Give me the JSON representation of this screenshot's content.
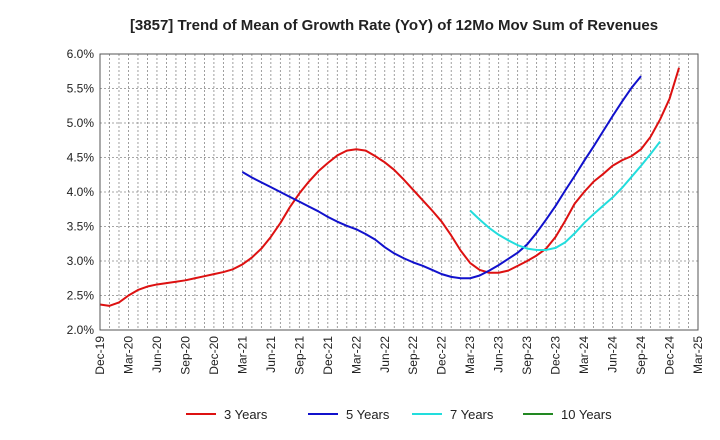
{
  "chart_data": {
    "type": "line",
    "title": "[3857]  Trend of Mean of Growth Rate (YoY) of 12Mo Mov Sum of Revenues",
    "xlabel": "",
    "ylabel": "",
    "ylim": [
      2.0,
      6.0
    ],
    "y_ticks": [
      2.0,
      2.5,
      3.0,
      3.5,
      4.0,
      4.5,
      5.0,
      5.5,
      6.0
    ],
    "y_tick_labels": [
      "2.0%",
      "2.5%",
      "3.0%",
      "3.5%",
      "4.0%",
      "4.5%",
      "5.0%",
      "5.5%",
      "6.0%"
    ],
    "x_tick_labels": [
      "Dec-19",
      "Mar-20",
      "Jun-20",
      "Sep-20",
      "Dec-20",
      "Mar-21",
      "Jun-21",
      "Sep-21",
      "Dec-21",
      "Mar-22",
      "Jun-22",
      "Sep-22",
      "Dec-22",
      "Mar-23",
      "Jun-23",
      "Sep-23",
      "Dec-23",
      "Mar-24",
      "Jun-24",
      "Sep-24",
      "Dec-24",
      "Mar-25"
    ],
    "x_months_total": 63,
    "grid": true,
    "legend_position": "bottom",
    "series": [
      {
        "name": "3 Years",
        "color": "#dd1111",
        "start_month": 0,
        "values": [
          2.37,
          2.35,
          2.4,
          2.5,
          2.58,
          2.63,
          2.66,
          2.68,
          2.7,
          2.72,
          2.75,
          2.78,
          2.81,
          2.84,
          2.88,
          2.95,
          3.05,
          3.18,
          3.35,
          3.55,
          3.78,
          3.98,
          4.15,
          4.3,
          4.42,
          4.53,
          4.6,
          4.62,
          4.6,
          4.52,
          4.43,
          4.32,
          4.18,
          4.03,
          3.88,
          3.73,
          3.57,
          3.37,
          3.15,
          2.97,
          2.87,
          2.83,
          2.83,
          2.86,
          2.93,
          3.0,
          3.08,
          3.18,
          3.35,
          3.58,
          3.83,
          4.0,
          4.15,
          4.26,
          4.38,
          4.46,
          4.52,
          4.62,
          4.8,
          5.05,
          5.35,
          5.8
        ]
      },
      {
        "name": "5 Years",
        "color": "#1111cc",
        "start_month": 15,
        "values": [
          4.29,
          4.21,
          4.14,
          4.07,
          4.0,
          3.93,
          3.86,
          3.79,
          3.72,
          3.64,
          3.57,
          3.51,
          3.46,
          3.39,
          3.31,
          3.2,
          3.11,
          3.04,
          2.98,
          2.93,
          2.87,
          2.81,
          2.77,
          2.75,
          2.75,
          2.79,
          2.86,
          2.94,
          3.03,
          3.12,
          3.24,
          3.41,
          3.6,
          3.8,
          4.02,
          4.23,
          4.45,
          4.66,
          4.88,
          5.1,
          5.31,
          5.51,
          5.68
        ]
      },
      {
        "name": "7 Years",
        "color": "#22dddd",
        "start_month": 39,
        "values": [
          3.73,
          3.6,
          3.48,
          3.38,
          3.3,
          3.23,
          3.18,
          3.16,
          3.16,
          3.19,
          3.27,
          3.4,
          3.55,
          3.68,
          3.8,
          3.92,
          4.06,
          4.22,
          4.38,
          4.55,
          4.73
        ]
      },
      {
        "name": "10 Years",
        "color": "#228822",
        "start_month": 0,
        "values": []
      }
    ]
  }
}
